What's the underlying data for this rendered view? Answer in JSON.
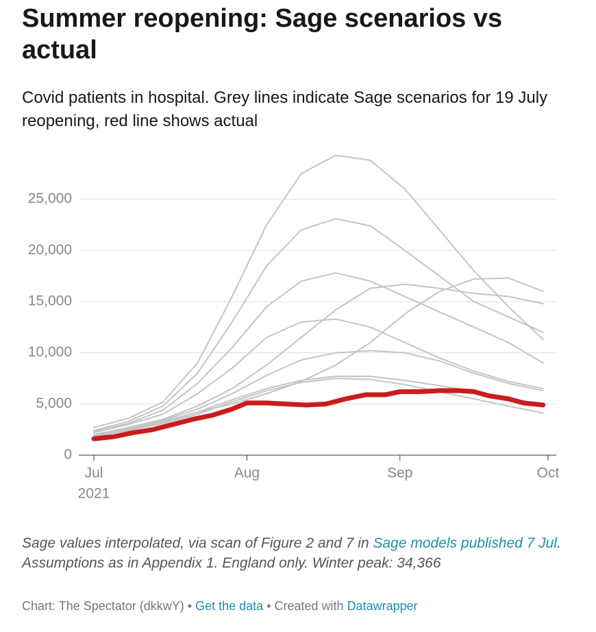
{
  "chart_data": {
    "type": "line",
    "title": "Summer reopening: Sage scenarios vs actual",
    "subtitle": "Covid patients in hospital. Grey lines indicate Sage scenarios for 19 July reopening, red line shows actual",
    "xlim": [
      0,
      92
    ],
    "xticks": [
      {
        "value": 0,
        "label": "Jul"
      },
      {
        "value": 31,
        "label": "Aug"
      },
      {
        "value": 62,
        "label": "Sep"
      },
      {
        "value": 92,
        "label": "Oct"
      }
    ],
    "x_year_label": "2021",
    "ylim": [
      0,
      30000
    ],
    "yticks": [
      0,
      {
        "value": 5000,
        "label": "5,000"
      },
      {
        "value": 10000,
        "label": "10,000"
      },
      {
        "value": 15000,
        "label": "15,000"
      },
      {
        "value": 20000,
        "label": "20,000"
      },
      {
        "value": 25000,
        "label": "25,000"
      }
    ],
    "grid": true,
    "series": [
      {
        "color": "#c4c4c4",
        "x": [
          0,
          7,
          14,
          21,
          28,
          35,
          42,
          49,
          56,
          63,
          70,
          77,
          84,
          91
        ],
        "values": [
          2700,
          3600,
          5200,
          9000,
          15500,
          22500,
          27500,
          29300,
          28800,
          26000,
          22000,
          18000,
          14500,
          11300
        ]
      },
      {
        "color": "#c4c4c4",
        "x": [
          0,
          7,
          14,
          21,
          28,
          35,
          42,
          49,
          56,
          63,
          70,
          77,
          84,
          91
        ],
        "values": [
          2400,
          3300,
          4800,
          8000,
          13000,
          18500,
          22000,
          23100,
          22400,
          20000,
          17500,
          15000,
          13500,
          12000
        ]
      },
      {
        "color": "#c4c4c4",
        "x": [
          0,
          7,
          14,
          21,
          28,
          35,
          42,
          49,
          56,
          63,
          70,
          77,
          84,
          91
        ],
        "values": [
          2300,
          3100,
          4400,
          7000,
          10500,
          14500,
          17000,
          17800,
          17000,
          15500,
          14000,
          12500,
          11000,
          9000
        ]
      },
      {
        "color": "#c4c4c4",
        "x": [
          0,
          7,
          14,
          21,
          28,
          35,
          42,
          49,
          56,
          63,
          70,
          77,
          84,
          91
        ],
        "values": [
          2000,
          2600,
          3300,
          4200,
          5000,
          6000,
          7200,
          8800,
          11000,
          13800,
          16000,
          17200,
          17300,
          16000
        ]
      },
      {
        "color": "#c4c4c4",
        "x": [
          0,
          7,
          14,
          21,
          28,
          35,
          42,
          49,
          56,
          63,
          70,
          77,
          84,
          91
        ],
        "values": [
          2000,
          2700,
          3500,
          4800,
          6500,
          8800,
          11500,
          14200,
          16300,
          16700,
          16300,
          15800,
          15500,
          14800
        ]
      },
      {
        "color": "#c4c4c4",
        "x": [
          0,
          7,
          14,
          21,
          28,
          35,
          42,
          49,
          56,
          63,
          70,
          77,
          84,
          91
        ],
        "values": [
          2200,
          3000,
          4000,
          6000,
          8500,
          11500,
          13000,
          13300,
          12500,
          11000,
          9500,
          8200,
          7200,
          6500
        ]
      },
      {
        "color": "#c4c4c4",
        "x": [
          0,
          7,
          14,
          21,
          28,
          35,
          42,
          49,
          56,
          63,
          70,
          77,
          84,
          91
        ],
        "values": [
          2000,
          2600,
          3400,
          4500,
          6000,
          7800,
          9300,
          10000,
          10200,
          10000,
          9200,
          8000,
          7000,
          6300
        ]
      },
      {
        "color": "#c4c4c4",
        "x": [
          0,
          7,
          14,
          21,
          28,
          35,
          42,
          49,
          56,
          63,
          70,
          77,
          84,
          91
        ],
        "values": [
          1900,
          2500,
          3200,
          4200,
          5400,
          6500,
          7300,
          7700,
          7700,
          7300,
          6800,
          6200,
          5600,
          4900
        ]
      },
      {
        "color": "#c4c4c4",
        "x": [
          0,
          7,
          14,
          21,
          28,
          35,
          42,
          49,
          56,
          63,
          70,
          77,
          84,
          91
        ],
        "values": [
          1800,
          2400,
          3100,
          4000,
          5200,
          6300,
          7100,
          7500,
          7400,
          6900,
          6200,
          5500,
          4800,
          4100
        ]
      },
      {
        "color": "#c71e1d",
        "x": [
          0,
          4,
          8,
          12,
          16,
          20,
          24,
          28,
          31,
          35,
          39,
          43,
          47,
          51,
          55,
          59,
          62,
          66,
          70,
          74,
          77,
          80,
          84,
          87,
          91
        ],
        "values": [
          1600,
          1800,
          2200,
          2500,
          3000,
          3500,
          3900,
          4500,
          5100,
          5100,
          5000,
          4900,
          5000,
          5500,
          5900,
          5900,
          6200,
          6200,
          6300,
          6300,
          6200,
          5800,
          5500,
          5100,
          4900
        ]
      }
    ]
  },
  "notes": {
    "text_before": "Sage values interpolated, via scan of Figure 2 and 7 in",
    "link": "Sage models published 7 Jul",
    "text_after": ". Assumptions as in Appendix 1. England only. Winter peak: 34,366"
  },
  "credits": {
    "source": "Chart: The Spectator (dkkwY)",
    "separator": "•",
    "data_link": "Get the data",
    "created": "• Created with",
    "tool_link": "Datawrapper"
  }
}
